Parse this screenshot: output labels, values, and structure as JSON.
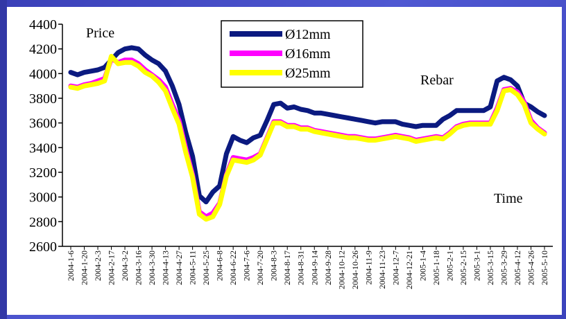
{
  "chart_data": {
    "type": "line",
    "title": "",
    "xlabel": "Time",
    "ylabel": "Price",
    "annotation": "Rebar",
    "ylim": [
      2600,
      4400
    ],
    "yticks": [
      2600,
      2800,
      3000,
      3200,
      3400,
      3600,
      3800,
      4000,
      4200,
      4400
    ],
    "grid": false,
    "legend_position": "top-center",
    "xtick_labels": [
      "2004-1-6",
      "2004-1-20",
      "2004-2-3",
      "2004-2-17",
      "2004-3-2",
      "2004-3-16",
      "2004-3-30",
      "2004-4-13",
      "2004-4-27",
      "2004-5-11",
      "2004-5-25",
      "2004-6-8",
      "2004-6-22",
      "2004-7-6",
      "2004-7-20",
      "2004-8-3",
      "2004-8-17",
      "2004-8-31",
      "2004-9-14",
      "2004-9-28",
      "2004-10-12",
      "2004-10-26",
      "2004-11-9",
      "2004-11-23",
      "2004-12-7",
      "2004-12-21",
      "2005-1-4",
      "2005-1-18",
      "2005-2-1",
      "2005-2-15",
      "2005-3-1",
      "2005-3-15",
      "2005-3-29",
      "2005-4-12",
      "2005-4-26",
      "2005-5-10"
    ],
    "n_points": 71,
    "series": [
      {
        "name": "Ø12mm",
        "color": "#0b1a80",
        "values": [
          4010,
          3990,
          4010,
          4020,
          4030,
          4050,
          4110,
          4170,
          4200,
          4210,
          4200,
          4150,
          4110,
          4080,
          4020,
          3900,
          3750,
          3520,
          3330,
          3010,
          2960,
          3040,
          3090,
          3350,
          3490,
          3460,
          3440,
          3480,
          3500,
          3620,
          3750,
          3760,
          3720,
          3730,
          3710,
          3700,
          3680,
          3680,
          3670,
          3660,
          3650,
          3640,
          3630,
          3620,
          3610,
          3600,
          3610,
          3610,
          3610,
          3590,
          3580,
          3570,
          3580,
          3580,
          3580,
          3630,
          3660,
          3700,
          3700,
          3700,
          3700,
          3700,
          3730,
          3940,
          3970,
          3950,
          3900,
          3760,
          3730,
          3690,
          3660
        ]
      },
      {
        "name": "Ø16mm",
        "color": "#ff00ff",
        "values": [
          3900,
          3890,
          3910,
          3920,
          3940,
          3960,
          4120,
          4090,
          4110,
          4110,
          4080,
          4030,
          3990,
          3950,
          3890,
          3750,
          3620,
          3390,
          3180,
          2880,
          2840,
          2870,
          2950,
          3180,
          3320,
          3310,
          3300,
          3320,
          3350,
          3480,
          3610,
          3610,
          3580,
          3580,
          3560,
          3560,
          3540,
          3530,
          3520,
          3510,
          3500,
          3490,
          3490,
          3480,
          3470,
          3470,
          3480,
          3490,
          3500,
          3490,
          3480,
          3460,
          3470,
          3480,
          3490,
          3480,
          3520,
          3570,
          3590,
          3600,
          3600,
          3600,
          3600,
          3720,
          3870,
          3880,
          3850,
          3770,
          3620,
          3560,
          3520
        ]
      },
      {
        "name": "Ø25mm",
        "color": "#ffff00",
        "values": [
          3890,
          3880,
          3900,
          3910,
          3920,
          3940,
          4140,
          4080,
          4090,
          4090,
          4060,
          4010,
          3980,
          3930,
          3860,
          3720,
          3590,
          3360,
          3160,
          2860,
          2820,
          2840,
          2940,
          3170,
          3300,
          3290,
          3280,
          3300,
          3340,
          3470,
          3600,
          3600,
          3570,
          3570,
          3550,
          3550,
          3530,
          3520,
          3510,
          3500,
          3490,
          3480,
          3480,
          3470,
          3460,
          3460,
          3470,
          3480,
          3490,
          3480,
          3470,
          3450,
          3460,
          3470,
          3480,
          3470,
          3510,
          3560,
          3580,
          3590,
          3590,
          3590,
          3590,
          3700,
          3860,
          3870,
          3830,
          3750,
          3600,
          3550,
          3510
        ]
      }
    ]
  }
}
